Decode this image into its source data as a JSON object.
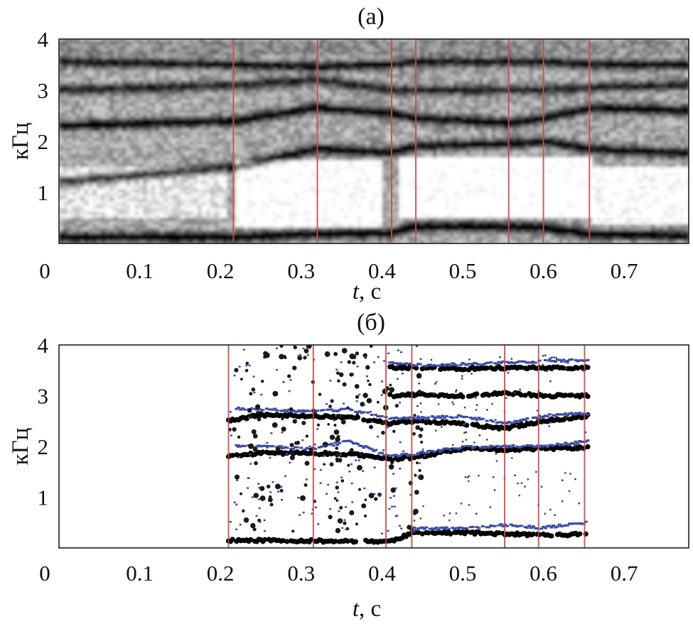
{
  "chart_data": [
    {
      "type": "heatmap",
      "panel_label": "(а)",
      "xlabel_italic": "t",
      "xlabel_rest": ", с",
      "ylabel": "кГц",
      "xlim": [
        0,
        0.78
      ],
      "ylim": [
        0,
        4
      ],
      "x_ticks": [
        "0",
        "0.1",
        "0.2",
        "0.3",
        "0.4",
        "0.5",
        "0.6",
        "0.7"
      ],
      "y_ticks": [
        "1",
        "2",
        "3",
        "4"
      ],
      "colormap": [
        "#ffffff",
        "#000000"
      ],
      "boundary_color": "#c0504d",
      "boundaries": [
        0.216,
        0.32,
        0.412,
        0.442,
        0.557,
        0.6,
        0.657
      ],
      "formant_bands": [
        {
          "t": [
            0.0,
            0.22,
            0.32,
            0.41,
            0.44,
            0.56,
            0.6,
            0.66,
            0.78
          ],
          "f": [
            0.12,
            0.12,
            0.18,
            0.2,
            0.33,
            0.33,
            0.3,
            0.18,
            0.15
          ],
          "strength": 0.85
        },
        {
          "t": [
            0.0,
            0.22,
            0.32,
            0.41,
            0.44,
            0.56,
            0.6,
            0.66,
            0.78
          ],
          "f": [
            1.2,
            1.5,
            1.85,
            1.78,
            1.9,
            1.95,
            2.0,
            1.85,
            1.75
          ],
          "strength": 0.75
        },
        {
          "t": [
            0.0,
            0.22,
            0.32,
            0.41,
            0.44,
            0.56,
            0.6,
            0.66,
            0.78
          ],
          "f": [
            2.3,
            2.4,
            2.65,
            2.55,
            2.45,
            2.35,
            2.45,
            2.65,
            2.6
          ],
          "strength": 0.8
        },
        {
          "t": [
            0.0,
            0.22,
            0.32,
            0.41,
            0.44,
            0.56,
            0.6,
            0.66,
            0.78
          ],
          "f": [
            3.0,
            3.1,
            3.2,
            3.0,
            3.0,
            3.0,
            3.0,
            3.05,
            3.1
          ],
          "strength": 0.6
        },
        {
          "t": [
            0.0,
            0.22,
            0.32,
            0.41,
            0.44,
            0.56,
            0.6,
            0.66,
            0.78
          ],
          "f": [
            3.55,
            3.5,
            3.45,
            3.5,
            3.55,
            3.55,
            3.55,
            3.5,
            3.5
          ],
          "strength": 0.7
        }
      ]
    },
    {
      "type": "scatter",
      "panel_label": "(б)",
      "xlabel_italic": "t",
      "xlabel_rest": ", с",
      "ylabel": "кГц",
      "xlim": [
        0,
        0.78
      ],
      "ylim": [
        0,
        4
      ],
      "x_ticks": [
        "0",
        "0.1",
        "0.2",
        "0.3",
        "0.4",
        "0.5",
        "0.6",
        "0.7"
      ],
      "y_ticks": [
        "1",
        "2",
        "3",
        "4"
      ],
      "boundary_color": "#c0504d",
      "boundaries": [
        0.21,
        0.315,
        0.405,
        0.437,
        0.552,
        0.594,
        0.651
      ],
      "track_range": [
        0.21,
        0.655
      ],
      "series": [
        {
          "color": "#000000",
          "t": [
            0.21,
            0.26,
            0.31,
            0.36,
            0.41,
            0.44,
            0.5,
            0.55,
            0.6,
            0.655
          ],
          "f": [
            0.15,
            0.15,
            0.14,
            0.13,
            0.13,
            0.3,
            0.3,
            0.28,
            0.25,
            0.27
          ]
        },
        {
          "color": "#000000",
          "t": [
            0.21,
            0.25,
            0.3,
            0.36,
            0.41,
            0.44,
            0.5,
            0.55,
            0.6,
            0.655
          ],
          "f": [
            1.8,
            1.87,
            1.87,
            1.85,
            1.75,
            1.78,
            1.95,
            1.93,
            1.95,
            1.98
          ]
        },
        {
          "color": "#000000",
          "t": [
            0.21,
            0.25,
            0.3,
            0.36,
            0.41,
            0.44,
            0.5,
            0.55,
            0.6,
            0.655
          ],
          "f": [
            2.5,
            2.62,
            2.6,
            2.58,
            2.45,
            2.5,
            2.45,
            2.35,
            2.5,
            2.6
          ]
        },
        {
          "color": "#000000",
          "t": [
            0.41,
            0.44,
            0.5,
            0.55,
            0.6,
            0.655
          ],
          "f": [
            3.0,
            3.02,
            3.0,
            3.05,
            3.0,
            3.0
          ]
        },
        {
          "color": "#000000",
          "t": [
            0.41,
            0.44,
            0.5,
            0.55,
            0.6,
            0.655
          ],
          "f": [
            3.55,
            3.55,
            3.53,
            3.55,
            3.55,
            3.55
          ]
        },
        {
          "color": "#3b4ba8",
          "t": [
            0.22,
            0.26,
            0.31,
            0.36,
            0.41,
            0.44,
            0.5,
            0.55,
            0.6,
            0.655
          ],
          "f": [
            2.75,
            2.72,
            2.7,
            2.72,
            2.55,
            2.55,
            2.6,
            2.45,
            2.6,
            2.65
          ]
        },
        {
          "color": "#3b4ba8",
          "t": [
            0.41,
            0.44,
            0.5,
            0.55,
            0.6,
            0.655
          ],
          "f": [
            3.65,
            3.6,
            3.62,
            3.65,
            3.68,
            3.7
          ]
        },
        {
          "color": "#3b4ba8",
          "t": [
            0.44,
            0.5,
            0.55,
            0.6,
            0.655
          ],
          "f": [
            0.38,
            0.38,
            0.45,
            0.4,
            0.5
          ]
        },
        {
          "color": "#3b4ba8",
          "t": [
            0.22,
            0.26,
            0.31,
            0.36,
            0.41,
            0.44,
            0.5,
            0.55,
            0.6,
            0.655
          ],
          "f": [
            2.0,
            2.0,
            1.95,
            2.1,
            1.8,
            1.85,
            1.98,
            2.0,
            2.0,
            2.1
          ]
        }
      ]
    }
  ]
}
